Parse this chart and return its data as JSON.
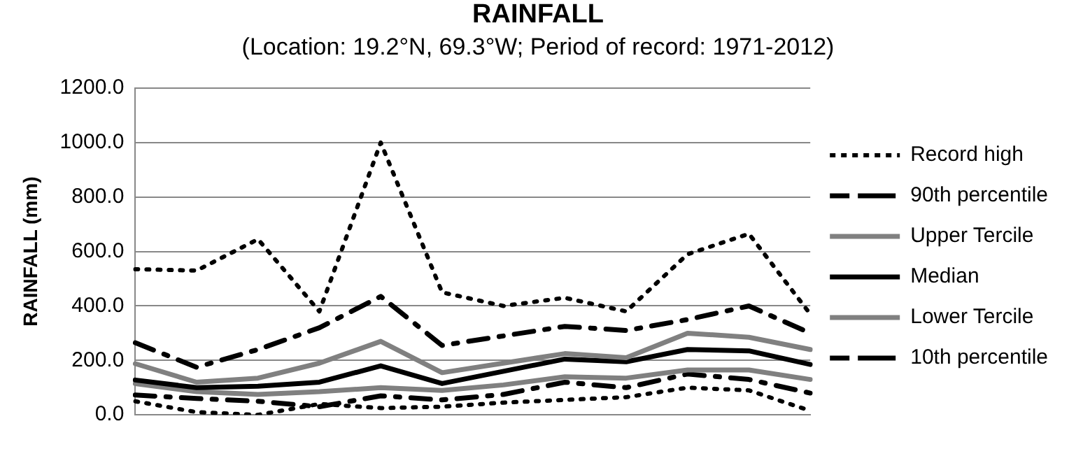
{
  "chart_data": {
    "type": "line",
    "title": "RAINFALL",
    "subtitle": "(Location: 19.2°N, 69.3°W; Period of record: 1971-2012)",
    "ylabel": "RAINFALL (mm)",
    "categories": [
      null,
      null,
      null,
      null,
      null,
      null,
      null,
      null,
      null,
      null,
      null,
      null
    ],
    "ylim": [
      0,
      1200
    ],
    "yticks": [
      {
        "value": 0,
        "label": "0.0"
      },
      {
        "value": 200,
        "label": "200.0"
      },
      {
        "value": 400,
        "label": "400.0"
      },
      {
        "value": 600,
        "label": "600.0"
      },
      {
        "value": 800,
        "label": "800.0"
      },
      {
        "value": 1000,
        "label": "1000.0"
      },
      {
        "value": 1200,
        "label": "1200.0"
      }
    ],
    "grid": "y",
    "legend": "right",
    "marker": "none",
    "series": [
      {
        "name": "Record high",
        "color": "#000000",
        "line_style": "dotted",
        "values": [
          535,
          530,
          645,
          380,
          1000,
          450,
          400,
          430,
          380,
          590,
          665,
          370
        ]
      },
      {
        "name": "90th percentile",
        "color": "#000000",
        "line_style": "dashed",
        "values": [
          265,
          175,
          240,
          320,
          435,
          255,
          290,
          325,
          310,
          350,
          400,
          300
        ]
      },
      {
        "name": "Upper Tercile",
        "color": "#808080",
        "line_style": "solid",
        "values": [
          188,
          120,
          135,
          190,
          270,
          155,
          190,
          225,
          210,
          300,
          285,
          240
        ]
      },
      {
        "name": "Median",
        "color": "#000000",
        "line_style": "solid",
        "values": [
          128,
          100,
          105,
          120,
          180,
          115,
          160,
          205,
          195,
          240,
          235,
          185
        ]
      },
      {
        "name": "Lower Tercile",
        "color": "#808080",
        "line_style": "solid",
        "values": [
          115,
          85,
          75,
          85,
          100,
          90,
          110,
          140,
          135,
          165,
          165,
          130
        ]
      },
      {
        "name": "10th percentile",
        "color": "#000000",
        "line_style": "dashed",
        "values": [
          73,
          60,
          50,
          30,
          70,
          55,
          75,
          120,
          100,
          150,
          130,
          80
        ]
      },
      {
        "color": "#000000",
        "line_style": "dotted",
        "values": [
          50,
          10,
          0,
          40,
          25,
          30,
          45,
          55,
          65,
          100,
          90,
          15
        ]
      }
    ]
  }
}
